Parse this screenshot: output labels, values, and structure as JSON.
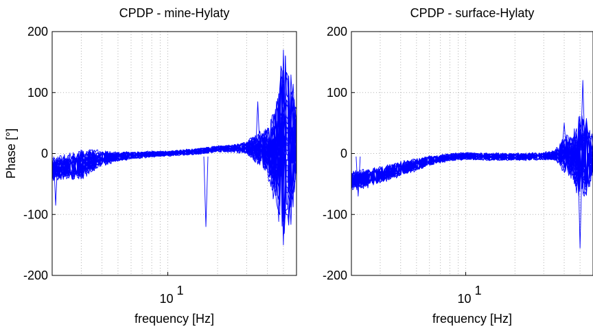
{
  "chart_data": [
    {
      "type": "line",
      "title": "CPDP - mine-Hylaty",
      "xlabel": "frequency [Hz]",
      "ylabel": "Phase [°]",
      "x_scale": "log",
      "xlim": [
        2,
        60
      ],
      "ylim": [
        -200,
        200
      ],
      "xticks": [
        {
          "value": 10,
          "base": "10",
          "exp": "1"
        }
      ],
      "yticks": [
        -200,
        -100,
        0,
        100,
        200
      ],
      "grid": true,
      "color": "#0000ff",
      "envelope": {
        "x": [
          2,
          2.5,
          3,
          3.5,
          4,
          5,
          6,
          8,
          10,
          14,
          17,
          20,
          25,
          30,
          35,
          40,
          45,
          50,
          55,
          60
        ],
        "center": [
          -25,
          -22,
          -18,
          -12,
          -8,
          -5,
          -3,
          -1,
          0,
          3,
          5,
          8,
          8,
          10,
          8,
          5,
          0,
          15,
          10,
          20
        ],
        "spread": [
          18,
          20,
          25,
          18,
          12,
          8,
          6,
          5,
          4,
          5,
          5,
          5,
          6,
          10,
          25,
          40,
          80,
          150,
          130,
          60
        ]
      },
      "features": [
        {
          "x": 2.1,
          "y": -85
        },
        {
          "x": 17,
          "y": -120
        },
        {
          "x": 35,
          "y": 85
        },
        {
          "x": 50,
          "y": -150
        },
        {
          "x": 50,
          "y": 170
        }
      ]
    },
    {
      "type": "line",
      "title": "CPDP - surface-Hylaty",
      "xlabel": "frequency [Hz]",
      "ylabel": "",
      "x_scale": "log",
      "xlim": [
        2,
        60
      ],
      "ylim": [
        -200,
        200
      ],
      "xticks": [
        {
          "value": 10,
          "base": "10",
          "exp": "1"
        }
      ],
      "yticks": [
        -200,
        -100,
        0,
        100,
        200
      ],
      "grid": true,
      "color": "#0000ff",
      "envelope": {
        "x": [
          2,
          2.5,
          3,
          3.5,
          4,
          5,
          6,
          8,
          10,
          14,
          17,
          20,
          25,
          30,
          35,
          40,
          45,
          50,
          55,
          60
        ],
        "center": [
          -45,
          -40,
          -35,
          -30,
          -25,
          -18,
          -12,
          -6,
          -4,
          -5,
          -5,
          -5,
          -5,
          -4,
          -3,
          0,
          -5,
          -5,
          -5,
          -5
        ],
        "spread": [
          15,
          15,
          14,
          12,
          12,
          10,
          8,
          6,
          6,
          6,
          6,
          6,
          6,
          6,
          8,
          30,
          35,
          80,
          60,
          30
        ]
      },
      "features": [
        {
          "x": 2.2,
          "y": -70
        },
        {
          "x": 40,
          "y": 50
        },
        {
          "x": 50,
          "y": -155
        },
        {
          "x": 52,
          "y": 120
        }
      ]
    }
  ]
}
